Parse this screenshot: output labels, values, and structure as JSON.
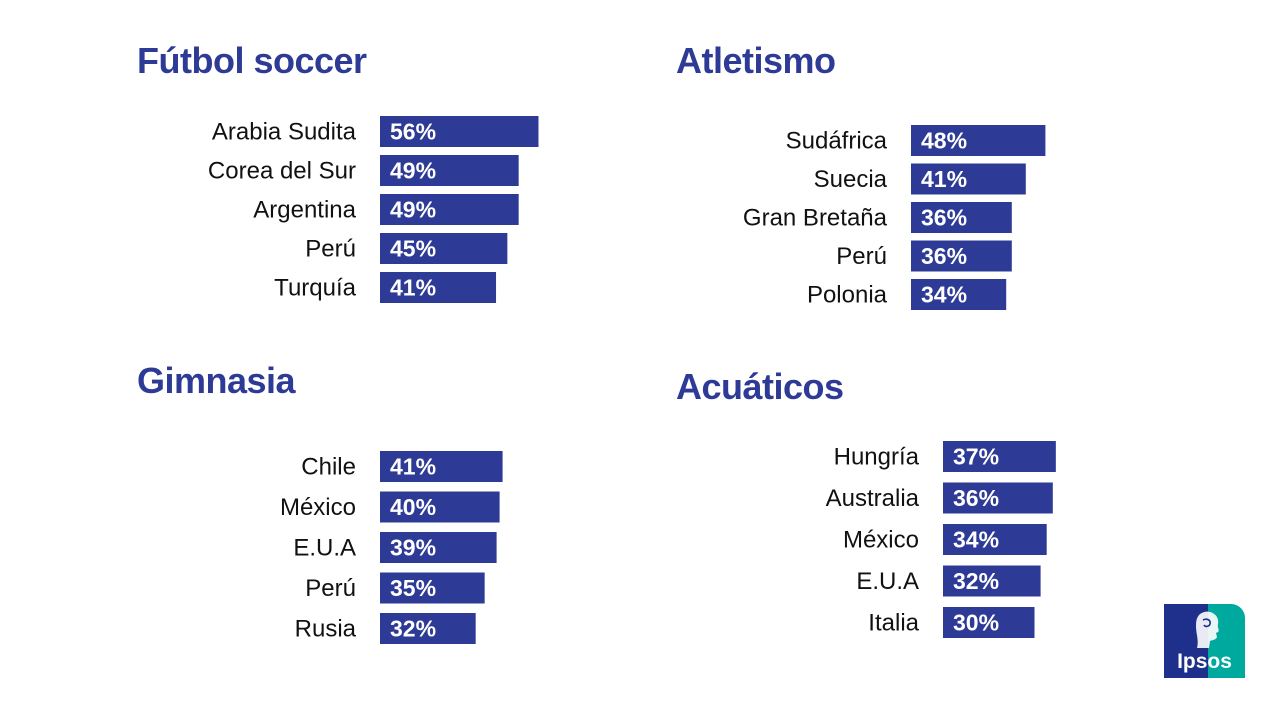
{
  "chart_data": [
    {
      "type": "bar",
      "orientation": "horizontal",
      "title": "Fútbol soccer",
      "categories": [
        "Arabia Sudita",
        "Corea del Sur",
        "Argentina",
        "Perú",
        "Turquía"
      ],
      "values": [
        56,
        49,
        49,
        45,
        41
      ],
      "value_labels": [
        "56%",
        "49%",
        "49%",
        "45%",
        "41%"
      ],
      "unit": "%",
      "color": "#2e3b96",
      "grid": false,
      "legend": false
    },
    {
      "type": "bar",
      "orientation": "horizontal",
      "title": "Atletismo",
      "categories": [
        "Sudáfrica",
        "Suecia",
        "Gran Bretaña",
        "Perú",
        "Polonia"
      ],
      "values": [
        48,
        41,
        36,
        36,
        34
      ],
      "value_labels": [
        "48%",
        "41%",
        "36%",
        "36%",
        "34%"
      ],
      "unit": "%",
      "color": "#2e3b96",
      "grid": false,
      "legend": false
    },
    {
      "type": "bar",
      "orientation": "horizontal",
      "title": "Gimnasia",
      "categories": [
        "Chile",
        "México",
        "E.U.A",
        "Perú",
        "Rusia"
      ],
      "values": [
        41,
        40,
        39,
        35,
        32
      ],
      "value_labels": [
        "41%",
        "40%",
        "39%",
        "35%",
        "32%"
      ],
      "unit": "%",
      "color": "#2e3b96",
      "grid": false,
      "legend": false
    },
    {
      "type": "bar",
      "orientation": "horizontal",
      "title": "Acuáticos",
      "categories": [
        "Hungría",
        "Australia",
        "México",
        "E.U.A",
        "Italia"
      ],
      "values": [
        37,
        36,
        34,
        32,
        30
      ],
      "value_labels": [
        "37%",
        "36%",
        "34%",
        "32%",
        "30%"
      ],
      "unit": "%",
      "color": "#2e3b96",
      "grid": false,
      "legend": false
    }
  ],
  "logo": {
    "text": "Ipsos",
    "primary_color": "#1f2f8c",
    "accent_color": "#00a99d"
  }
}
